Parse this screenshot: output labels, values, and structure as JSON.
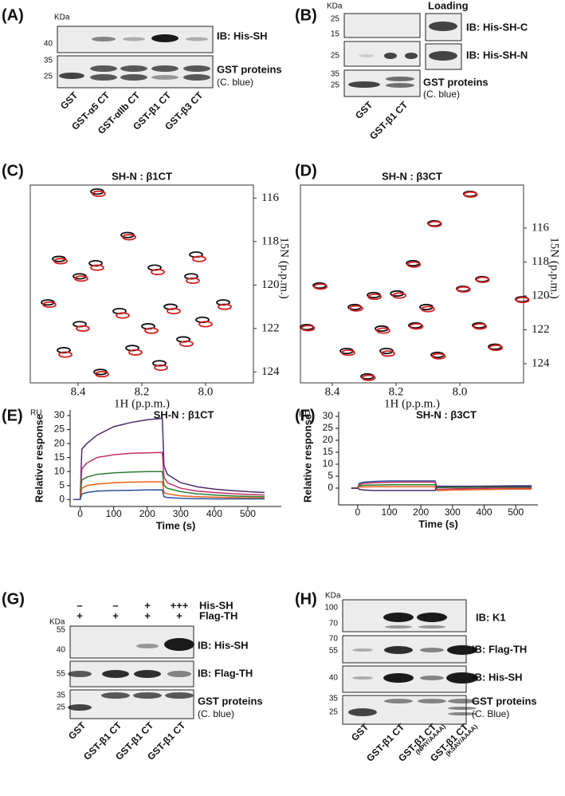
{
  "panels": {
    "a": {
      "label": "(A)",
      "unit": "KDa",
      "blot1_markers": [
        40
      ],
      "blot2_markers": [
        35,
        25
      ],
      "blot1_label": "IB: His-SH",
      "blot2_label": "GST proteins",
      "blot2_sublabel": "(C. blue)",
      "lanes": [
        "GST",
        "GST-α5 CT",
        "GST-αIIb CT",
        "GST-β1 CT",
        "GST-β3 CT"
      ]
    },
    "b": {
      "label": "(B)",
      "unit": "KDa",
      "loading": "Loading",
      "blot1_markers": [
        25,
        15
      ],
      "blot2_markers": [
        25
      ],
      "blot3_markers": [
        35,
        25
      ],
      "blot1_label": "IB: His-SH-C",
      "blot2_label": "IB: His-SH-N",
      "blot3_label": "GST proteins",
      "blot3_sublabel": "(C. blue)",
      "lanes": [
        "GST",
        "GST-β1 CT"
      ]
    },
    "c": {
      "label": "(C)"
    },
    "d": {
      "label": "(D)"
    },
    "e": {
      "label": "(E)"
    },
    "f": {
      "label": "(F)"
    },
    "g": {
      "label": "(G)",
      "his_sh": [
        "–",
        "–",
        "+",
        "+++"
      ],
      "his_sh_label": "His-SH",
      "flag_th": [
        "+",
        "+",
        "+",
        "+"
      ],
      "flag_th_label": "Flag-TH",
      "unit": "KDa",
      "blot1_markers": [
        55,
        40
      ],
      "blot2_markers": [
        55
      ],
      "blot3_markers": [
        35,
        25
      ],
      "blot1_label": "IB: His-SH",
      "blot2_label": "IB: Flag-TH",
      "blot3_label": "GST proteins",
      "blot3_sublabel": "(C. blue)",
      "lanes": [
        "GST",
        "GST-β1 CT",
        "GST-β1 CT",
        "GST-β1 CT"
      ]
    },
    "h": {
      "label": "(H)",
      "unit": "KDa",
      "blot1_markers": [
        100,
        70
      ],
      "blot2_markers": [
        70,
        55
      ],
      "blot3_markers": [
        40
      ],
      "blot4_markers": [
        35,
        25
      ],
      "blot1_label": "IB: K1",
      "blot2_label": "IB: Flag-TH",
      "blot3_label": "IB: His-SH",
      "blot4_label": "GST proteins",
      "blot4_sublabel": "(C. Blue)",
      "lanes": [
        "GST",
        "GST-β1 CT",
        "GST-β1 CT",
        "GST-β1 CT"
      ],
      "lane_notes": {
        "2": "(NPIY/AAAA)",
        "3": "(KSAV/AAAA)"
      }
    }
  },
  "chart_data": [
    {
      "type": "scatter",
      "title": "SH-N : β1CT",
      "x_label": "1H (p.p.m.)",
      "y_label": "15N (p.p.m.)",
      "xlim": [
        8.55,
        7.85
      ],
      "ylim": [
        124.5,
        115.4
      ],
      "xticks": [
        8.4,
        8.2,
        {
          "value": 8,
          "label": "8.0"
        }
      ],
      "yticks": [
        116,
        118,
        120,
        122,
        124
      ],
      "series": [
        {
          "color": "#111111",
          "x": [
            8.34,
            8.245,
            8.46,
            8.345,
            8.03,
            8.395,
            8.16,
            8.045,
            8.495,
            7.945,
            8.27,
            8.11,
            8.395,
            8.18,
            8.01,
            8.445,
            8.23,
            8.33,
            8.145,
            8.07
          ],
          "values": [
            115.7,
            117.7,
            118.8,
            119,
            118.6,
            119.6,
            119.2,
            119.6,
            120.8,
            120.8,
            121.2,
            121,
            121.8,
            121.9,
            121.6,
            123,
            122.9,
            124,
            123.6,
            122.5
          ]
        },
        {
          "color": "#d42020",
          "x": [
            8.335,
            8.24,
            8.455,
            8.34,
            8.02,
            8.39,
            8.15,
            8.04,
            8.49,
            7.94,
            8.26,
            8.1,
            8.385,
            8.17,
            8,
            8.44,
            8.22,
            8.325,
            8.14,
            8.06
          ],
          "values": [
            115.8,
            117.8,
            118.9,
            119.2,
            118.8,
            119.7,
            119.4,
            119.8,
            120.9,
            121,
            121.4,
            121.2,
            122,
            122.1,
            121.8,
            123.2,
            123.1,
            124.1,
            123.8,
            122.7
          ]
        }
      ]
    },
    {
      "type": "scatter",
      "title": "SH-N : β3CT",
      "x_label": "1H (p.p.m.)",
      "y_label": "15N (p.p.m.)",
      "xlim": [
        8.5,
        7.8
      ],
      "ylim": [
        125.13,
        113.46
      ],
      "xticks": [
        8.4,
        8.2,
        {
          "value": 8,
          "label": "8.0"
        }
      ],
      "yticks": [
        116,
        118,
        120,
        122,
        124
      ],
      "series": [
        {
          "color": "#111111",
          "x": [
            7.968,
            8.08,
            8.147,
            7.93,
            8.44,
            8.27,
            8.197,
            7.99,
            7.805,
            8.33,
            8.105,
            8.48,
            8.245,
            8.14,
            7.94,
            8.355,
            8.23,
            8.07,
            7.89,
            8.29
          ],
          "values": [
            113.98,
            115.72,
            118.07,
            119.01,
            119.39,
            119.95,
            119.86,
            119.58,
            120.2,
            120.66,
            120.66,
            121.84,
            121.93,
            121.74,
            121.74,
            123.25,
            123.25,
            123.48,
            123,
            124.75
          ]
        },
        {
          "color": "#d42020",
          "x": [
            7.966,
            8.078,
            8.144,
            7.928,
            8.437,
            8.267,
            8.19,
            7.988,
            7.803,
            8.325,
            8.1,
            8.476,
            8.24,
            8.136,
            7.937,
            8.35,
            8.225,
            8.066,
            7.887,
            8.286
          ],
          "values": [
            114.02,
            115.76,
            118.15,
            119.05,
            119.45,
            120.05,
            119.98,
            119.62,
            120.24,
            120.74,
            120.78,
            121.9,
            122.05,
            121.8,
            121.8,
            123.35,
            123.4,
            123.56,
            123.06,
            124.83
          ]
        }
      ]
    },
    {
      "type": "line",
      "title": "SH-N : β1CT",
      "unit": "RU",
      "y_label": "Relative response",
      "x_label": "Time (s)",
      "xlim": [
        -30,
        600
      ],
      "ylim": [
        -2.5,
        32
      ],
      "xticks": [
        0,
        100,
        200,
        300,
        400,
        500
      ],
      "yticks": [
        0,
        5,
        10,
        15,
        20,
        25,
        30
      ],
      "x": [
        -20,
        0,
        5,
        20,
        50,
        100,
        150,
        200,
        245,
        250,
        260,
        300,
        350,
        400,
        450,
        500,
        550
      ],
      "series": [
        {
          "color": "#4b2a6e",
          "values": [
            0,
            0,
            18,
            20,
            23,
            26,
            27.5,
            28.5,
            29,
            12,
            9,
            6,
            4.5,
            3.7,
            3.2,
            2.8,
            2.5
          ]
        },
        {
          "color": "#c0306a",
          "values": [
            0,
            0,
            11,
            13,
            15,
            16,
            16.5,
            16.7,
            16.8,
            8,
            6,
            4,
            3,
            2.5,
            2.1,
            1.8,
            1.6
          ]
        },
        {
          "color": "#2e7d32",
          "values": [
            0,
            0,
            7,
            8,
            9,
            9.5,
            9.8,
            10,
            10,
            5,
            4,
            2.8,
            2,
            1.6,
            1.3,
            1.1,
            1
          ]
        },
        {
          "color": "#e8601c",
          "values": [
            0,
            0,
            4,
            5,
            5.5,
            6,
            6.2,
            6.3,
            6.3,
            2.5,
            2,
            1.3,
            1,
            0.8,
            0.7,
            0.6,
            0.5
          ]
        },
        {
          "color": "#2a4f9a",
          "values": [
            0,
            0,
            2,
            2.5,
            3,
            3.2,
            3.3,
            3.4,
            3.4,
            1,
            0.7,
            0.4,
            0.3,
            0.2,
            0.2,
            0.2,
            0.2
          ]
        }
      ]
    },
    {
      "type": "line",
      "title": "SH-N : β3CT",
      "unit": "RU",
      "y_label": "Relative response",
      "x_label": "Time (s)",
      "xlim": [
        -60,
        570
      ],
      "ylim": [
        -7,
        32
      ],
      "xticks": [
        0,
        100,
        200,
        300,
        400,
        500
      ],
      "yticks": [
        0,
        5,
        10,
        15,
        20,
        25,
        30
      ],
      "x": [
        -20,
        0,
        5,
        20,
        50,
        100,
        150,
        200,
        245,
        250,
        260,
        300,
        350,
        400,
        450,
        500,
        550
      ],
      "series": [
        {
          "color": "#2a4f9a",
          "values": [
            0,
            0,
            2,
            2.5,
            2.8,
            3,
            3,
            3,
            3,
            0.5,
            0.5,
            0.6,
            0.7,
            0.8,
            0.9,
            1,
            1
          ]
        },
        {
          "color": "#c0306a",
          "values": [
            0,
            0,
            1.5,
            2,
            2.2,
            2.4,
            2.5,
            2.5,
            2.5,
            -0.5,
            -0.5,
            -0.3,
            -0.2,
            -0.1,
            0,
            0,
            0
          ]
        },
        {
          "color": "#2e7d32",
          "values": [
            0,
            0,
            1,
            1.2,
            1.3,
            1.4,
            1.4,
            1.4,
            1.4,
            0.2,
            0.2,
            0.3,
            0.3,
            0.4,
            0.4,
            0.4,
            0.4
          ]
        },
        {
          "color": "#e8601c",
          "values": [
            0,
            0,
            0.5,
            0.5,
            0.6,
            0.6,
            0.6,
            0.6,
            0.6,
            -1,
            -1,
            -0.8,
            -0.7,
            -0.6,
            -0.5,
            -0.4,
            -0.4
          ]
        },
        {
          "color": "#4b2a6e",
          "values": [
            0,
            0,
            -0.5,
            -0.8,
            -1,
            -1,
            -1,
            -1,
            -1,
            0.8,
            0.8,
            0.8,
            0.8,
            0.8,
            0.8,
            0.8,
            0.8
          ]
        }
      ]
    }
  ]
}
